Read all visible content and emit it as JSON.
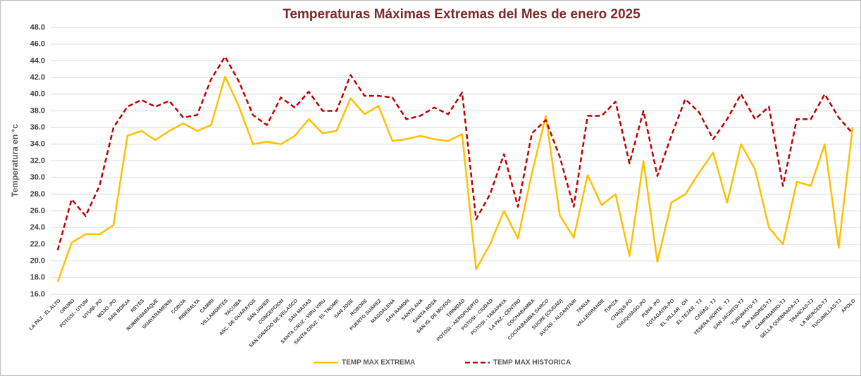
{
  "chart_data": {
    "type": "line",
    "title": "Temperaturas  Máximas Extremas del Mes de enero 2025",
    "ylabel": "Temperatura en °c",
    "categories": [
      "LA PAZ - EL ALTO",
      "ORURO",
      "POTOSI - UYUNI",
      "UYUNI- PO",
      "MOJO -PO",
      "SAN BORJA",
      "REYES",
      "RURRENABAQUE",
      "GUAYARAMERIN",
      "COBIJA",
      "RIBERALTA",
      "CAMIRI",
      "VILLAMONTES",
      "YACUIBA",
      "ASC. DE GUARAYOS",
      "SAN JAVIER",
      "CONCEPCION",
      "SAN IGNACIO DE VELASCO",
      "SAN MATIAS",
      "SANTA CRUZ - VIRU VIRU",
      "SANTA CRUZ - EL TROMP.",
      "SAN JOSE",
      "ROBORE",
      "PUERTO SUAREZ",
      "MAGDALENA",
      "SAN RAMON",
      "SANTA ANA",
      "SANTA ROSA",
      "SAN IG. DE MOXOS",
      "TRINIDAD",
      "POTOSI - AEROPUERTO",
      "POTOSI - CIUDAD",
      "POTOSI - TARAPAYA",
      "LA PAZ - CENTRO",
      "COCHABAMBA",
      "COCHABAMBA SARCO",
      "SUCRE (CIUDAD)",
      "SUCRE - ALCANTARI",
      "TARIJA",
      "VALLEGRANDE",
      "TUPIZA",
      "CHAQUI-PO",
      "CHUQUIAGO-PO",
      "PUNA -PO",
      "COTAGAITA-PO",
      "EL VILLAR - CH",
      "EL TEJAR - TJ",
      "CAÑAS - TJ",
      "YESERA NORTE - TJ",
      "SAN JACINTO-TJ",
      "TURUMAYO-TJ",
      "SAN ANDRES-TJ",
      "CAMPANARIO-TJ",
      "SELLA QUEBRADA-TJ",
      "TRANCAS-TJ",
      "LA MERCED-TJ",
      "TUCUMILLAS-TJ",
      "APOLO"
    ],
    "series": [
      {
        "name": "TEMP MAX EXTREMA",
        "color": "#ffc000",
        "dash": false,
        "values": [
          17.5,
          22.2,
          23.2,
          23.2,
          24.3,
          35.0,
          35.6,
          34.5,
          35.6,
          36.5,
          35.6,
          36.3,
          42.1,
          38.5,
          34.0,
          34.3,
          34.0,
          35.0,
          37.0,
          35.3,
          35.6,
          39.5,
          37.6,
          38.6,
          34.4,
          34.6,
          35.0,
          34.6,
          34.4,
          35.2,
          19.0,
          22.0,
          26.0,
          22.7,
          30.5,
          37.4,
          25.5,
          22.8,
          30.3,
          26.7,
          28.0,
          20.6,
          32.0,
          19.9,
          27.0,
          28.0,
          30.6,
          33.0,
          27.0,
          34.0,
          31.0,
          24.0,
          22.0,
          29.5,
          29.0,
          34.0,
          21.6,
          36.0
        ]
      },
      {
        "name": "TEMP MAX HISTORICA",
        "color": "#c00000",
        "dash": true,
        "values": [
          21.3,
          27.4,
          25.4,
          29.0,
          36.0,
          38.5,
          39.3,
          38.5,
          39.2,
          37.2,
          37.5,
          41.8,
          44.5,
          41.5,
          37.5,
          36.3,
          39.6,
          38.4,
          40.3,
          38.0,
          38.0,
          42.3,
          39.8,
          39.8,
          39.6,
          37.0,
          37.4,
          38.4,
          37.6,
          40.2,
          25.0,
          28.0,
          32.8,
          26.5,
          35.3,
          36.9,
          32.5,
          26.5,
          37.4,
          37.4,
          39.1,
          31.7,
          38.0,
          30.2,
          35.0,
          39.4,
          37.8,
          34.6,
          37.0,
          40.0,
          37.0,
          38.5,
          29.0,
          37.0,
          37.0,
          40.0,
          37.2,
          35.3
        ]
      }
    ],
    "ylim": [
      16,
      48
    ],
    "yticks": [
      {
        "value": 16,
        "label": "16.0"
      },
      {
        "value": 18,
        "label": "18.0"
      },
      {
        "value": 20,
        "label": "20.0"
      },
      {
        "value": 22,
        "label": "22.0"
      },
      {
        "value": 24,
        "label": "24.0"
      },
      {
        "value": 26,
        "label": "26.0"
      },
      {
        "value": 28,
        "label": "28.0"
      },
      {
        "value": 30,
        "label": "30.0"
      },
      {
        "value": 32,
        "label": "32.0"
      },
      {
        "value": 34,
        "label": "34.0"
      },
      {
        "value": 36,
        "label": "36.0"
      },
      {
        "value": 38,
        "label": "38.0"
      },
      {
        "value": 40,
        "label": "40.0"
      },
      {
        "value": 42,
        "label": "42.0"
      },
      {
        "value": 44,
        "label": "44.0"
      },
      {
        "value": 46,
        "label": "46.0"
      },
      {
        "value": 48,
        "label": "48.0"
      }
    ],
    "grid": true,
    "legend": "bottom"
  }
}
